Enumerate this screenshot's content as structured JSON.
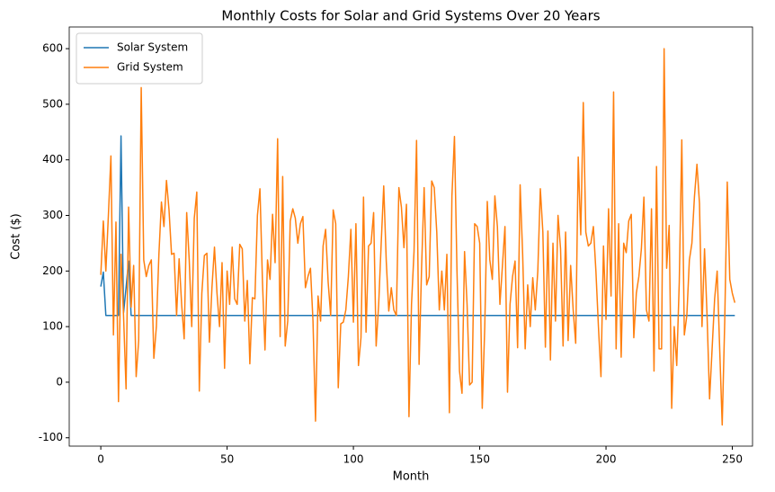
{
  "chart_data": {
    "type": "line",
    "title": "Monthly Costs for Solar and Grid Systems Over 20 Years",
    "x_label": "Month",
    "y_label": "Cost ($)",
    "x": [
      0,
      1,
      2,
      3,
      4,
      5,
      6,
      7,
      8,
      9,
      10,
      11,
      12,
      13,
      14,
      15,
      16,
      17,
      18,
      19,
      20,
      21,
      22,
      23,
      24,
      25,
      26,
      27,
      28,
      29,
      30,
      31,
      32,
      33,
      34,
      35,
      36,
      37,
      38,
      39,
      40,
      41,
      42,
      43,
      44,
      45,
      46,
      47,
      48,
      49,
      50,
      51,
      52,
      53,
      54,
      55,
      56,
      57,
      58,
      59,
      60,
      61,
      62,
      63,
      64,
      65,
      66,
      67,
      68,
      69,
      70,
      71,
      72,
      73,
      74,
      75,
      76,
      77,
      78,
      79,
      80,
      81,
      82,
      83,
      84,
      85,
      86,
      87,
      88,
      89,
      90,
      91,
      92,
      93,
      94,
      95,
      96,
      97,
      98,
      99,
      100,
      101,
      102,
      103,
      104,
      105,
      106,
      107,
      108,
      109,
      110,
      111,
      112,
      113,
      114,
      115,
      116,
      117,
      118,
      119,
      120,
      121,
      122,
      123,
      124,
      125,
      126,
      127,
      128,
      129,
      130,
      131,
      132,
      133,
      134,
      135,
      136,
      137,
      138,
      139,
      140,
      141,
      142,
      143,
      144,
      145,
      146,
      147,
      148,
      149,
      150,
      151,
      152,
      153,
      154,
      155,
      156,
      157,
      158,
      159,
      160,
      161,
      162,
      163,
      164,
      165,
      166,
      167,
      168,
      169,
      170,
      171,
      172,
      173,
      174,
      175,
      176,
      177,
      178,
      179,
      180,
      181,
      182,
      183,
      184,
      185,
      186,
      187,
      188,
      189,
      190,
      191,
      192,
      193,
      194,
      195,
      196,
      197,
      198,
      199,
      200,
      201,
      202,
      203,
      204,
      205,
      206,
      207,
      208,
      209,
      210,
      211,
      212,
      213,
      214,
      215,
      216,
      217,
      218,
      219,
      220,
      221,
      222,
      223,
      224,
      225,
      226,
      227,
      228,
      229,
      230,
      231,
      232,
      233,
      234,
      235,
      236,
      237,
      238,
      239,
      240,
      241,
      242,
      243,
      244,
      245,
      246,
      247,
      248,
      249,
      250,
      251
    ],
    "series": [
      {
        "name": "Solar System",
        "color": "#1f77b4",
        "values": [
          172,
          198,
          120,
          120,
          120,
          120,
          120,
          120,
          443,
          125,
          170,
          218,
          120,
          120,
          120,
          120,
          120,
          120,
          120,
          120,
          120,
          120,
          120,
          120,
          120,
          120,
          120,
          120,
          120,
          120,
          120,
          120,
          120,
          120,
          120,
          120,
          120,
          120,
          120,
          120,
          120,
          120,
          120,
          120,
          120,
          120,
          120,
          120,
          120,
          120,
          120,
          120,
          120,
          120,
          120,
          120,
          120,
          120,
          120,
          120,
          120,
          120,
          120,
          120,
          120,
          120,
          120,
          120,
          120,
          120,
          120,
          120,
          120,
          120,
          120,
          120,
          120,
          120,
          120,
          120,
          120,
          120,
          120,
          120,
          120,
          120,
          120,
          120,
          120,
          120,
          120,
          120,
          120,
          120,
          120,
          120,
          120,
          120,
          120,
          120,
          120,
          120,
          120,
          120,
          120,
          120,
          120,
          120,
          120,
          120,
          120,
          120,
          120,
          120,
          120,
          120,
          120,
          120,
          120,
          120,
          120,
          120,
          120,
          120,
          120,
          120,
          120,
          120,
          120,
          120,
          120,
          120,
          120,
          120,
          120,
          120,
          120,
          120,
          120,
          120,
          120,
          120,
          120,
          120,
          120,
          120,
          120,
          120,
          120,
          120,
          120,
          120,
          120,
          120,
          120,
          120,
          120,
          120,
          120,
          120,
          120,
          120,
          120,
          120,
          120,
          120,
          120,
          120,
          120,
          120,
          120,
          120,
          120,
          120,
          120,
          120,
          120,
          120,
          120,
          120,
          120,
          120,
          120,
          120,
          120,
          120,
          120,
          120,
          120,
          120,
          120,
          120,
          120,
          120,
          120,
          120,
          120,
          120,
          120,
          120,
          120,
          120,
          120,
          120,
          120,
          120,
          120,
          120,
          120,
          120,
          120,
          120,
          120,
          120,
          120,
          120,
          120,
          120,
          120,
          120,
          120,
          120,
          120,
          120,
          120,
          120,
          120,
          120,
          120,
          120,
          120,
          120,
          120,
          120,
          120,
          120,
          120,
          120,
          120,
          120,
          120,
          120,
          120,
          120,
          120,
          120,
          120,
          120,
          120,
          120,
          120,
          120
        ]
      },
      {
        "name": "Grid System",
        "color": "#ff7f0e",
        "values": [
          193,
          290,
          200,
          300,
          407,
          85,
          288,
          -35,
          230,
          120,
          -12,
          315,
          135,
          210,
          10,
          75,
          530,
          220,
          190,
          210,
          220,
          43,
          100,
          230,
          324,
          280,
          363,
          310,
          230,
          232,
          120,
          222,
          140,
          78,
          305,
          220,
          100,
          295,
          342,
          -16,
          160,
          228,
          232,
          72,
          170,
          243,
          160,
          100,
          215,
          25,
          200,
          140,
          243,
          150,
          140,
          248,
          240,
          110,
          183,
          33,
          152,
          150,
          300,
          348,
          180,
          58,
          220,
          185,
          302,
          215,
          438,
          82,
          370,
          65,
          110,
          290,
          312,
          295,
          250,
          285,
          298,
          170,
          190,
          205,
          110,
          -70,
          155,
          110,
          245,
          275,
          180,
          120,
          310,
          285,
          -10,
          105,
          108,
          130,
          190,
          275,
          108,
          285,
          30,
          80,
          333,
          90,
          245,
          250,
          305,
          65,
          140,
          250,
          353,
          218,
          128,
          170,
          130,
          120,
          350,
          315,
          242,
          320,
          -62,
          140,
          235,
          435,
          32,
          208,
          350,
          175,
          190,
          362,
          350,
          270,
          130,
          200,
          130,
          230,
          -55,
          335,
          442,
          200,
          20,
          -20,
          235,
          140,
          -5,
          0,
          285,
          280,
          250,
          -47,
          100,
          325,
          220,
          185,
          335,
          280,
          140,
          210,
          280,
          -18,
          140,
          190,
          218,
          62,
          355,
          230,
          60,
          175,
          100,
          188,
          130,
          200,
          348,
          270,
          63,
          272,
          40,
          250,
          110,
          300,
          240,
          65,
          270,
          75,
          210,
          130,
          70,
          405,
          265,
          503,
          270,
          245,
          250,
          280,
          200,
          100,
          10,
          245,
          113,
          312,
          155,
          522,
          60,
          285,
          45,
          250,
          233,
          290,
          302,
          80,
          160,
          190,
          240,
          333,
          130,
          110,
          312,
          20,
          388,
          60,
          60,
          600,
          205,
          282,
          -47,
          100,
          30,
          180,
          436,
          85,
          120,
          220,
          250,
          333,
          392,
          322,
          100,
          240,
          120,
          -30,
          60,
          150,
          200,
          60,
          -77,
          110,
          360,
          185,
          160,
          143
        ]
      }
    ],
    "xlim": [
      -12.5,
      258
    ],
    "ylim": [
      -115,
      639
    ],
    "xticks": [
      0,
      50,
      100,
      150,
      200,
      250
    ],
    "yticks": [
      -100,
      0,
      100,
      200,
      300,
      400,
      500,
      600
    ],
    "legend": "upper left"
  }
}
